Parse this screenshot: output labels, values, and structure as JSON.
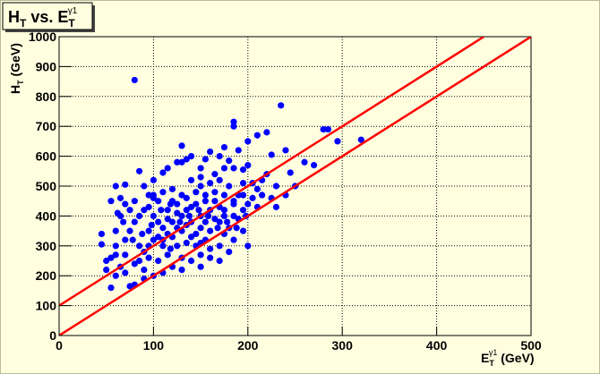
{
  "chart_data": {
    "type": "scatter",
    "title": [
      "H",
      "T",
      " vs. E",
      "T",
      "γ1"
    ],
    "x_label": [
      "E",
      "T",
      "γ1",
      " (GeV)"
    ],
    "y_label": [
      "H",
      "T",
      " (GeV)"
    ],
    "color": "#0000ff",
    "grid": true,
    "xlim": [
      0,
      500
    ],
    "xticks": [
      0,
      100,
      200,
      300,
      400,
      500
    ],
    "ylim": [
      0,
      1000
    ],
    "yticks": [
      0,
      100,
      200,
      300,
      400,
      500,
      600,
      700,
      800,
      900,
      1000
    ],
    "lines": [
      {
        "color": "#ff0000",
        "x": [
          0,
          450
        ],
        "y": [
          100,
          1000
        ]
      },
      {
        "color": "#ff0000",
        "x": [
          0,
          500
        ],
        "y": [
          0,
          1000
        ]
      }
    ],
    "x": [
      80,
      235,
      185,
      185,
      280,
      285,
      320,
      295,
      260,
      270,
      220,
      210,
      240,
      225,
      200,
      130,
      175,
      85,
      45,
      45,
      50,
      75,
      80,
      55,
      60,
      65,
      70,
      55,
      60,
      70,
      90,
      95,
      100,
      110,
      115,
      120,
      125,
      135,
      140,
      150,
      155,
      160,
      165,
      170,
      180,
      185,
      190,
      195,
      200,
      205,
      210,
      215,
      220,
      230,
      245,
      250,
      190,
      185,
      180,
      175,
      170,
      165,
      160,
      155,
      150,
      145,
      140,
      135,
      130,
      125,
      120,
      115,
      110,
      105,
      100,
      95,
      90,
      85,
      80,
      75,
      70,
      65,
      60,
      55,
      50,
      85,
      90,
      95,
      100,
      105,
      110,
      115,
      120,
      125,
      130,
      135,
      140,
      145,
      150,
      155,
      160,
      165,
      170,
      175,
      180,
      185,
      190,
      195,
      200,
      205,
      210,
      215,
      225,
      180,
      170,
      160,
      150,
      140,
      130,
      120,
      110,
      100,
      90,
      105,
      115,
      125,
      135,
      145,
      155,
      175,
      185,
      195,
      200,
      75,
      80,
      70,
      65,
      100,
      110,
      120,
      130,
      140,
      150,
      160,
      170,
      100,
      95,
      85,
      105,
      115,
      125,
      135,
      145,
      155,
      165,
      175,
      185,
      195,
      150,
      140,
      60,
      62,
      68,
      78,
      88,
      98,
      108,
      118,
      128,
      138,
      148,
      158,
      168,
      178,
      188,
      198,
      230,
      240,
      130,
      150,
      175,
      195,
      110,
      118,
      160,
      170,
      150,
      130,
      90,
      80,
      70,
      95,
      60
    ],
    "values": [
      855,
      770,
      715,
      700,
      690,
      690,
      655,
      650,
      580,
      570,
      680,
      670,
      620,
      605,
      650,
      635,
      630,
      550,
      340,
      305,
      250,
      165,
      170,
      160,
      200,
      230,
      270,
      450,
      500,
      505,
      500,
      470,
      520,
      545,
      560,
      490,
      580,
      590,
      600,
      560,
      590,
      615,
      540,
      600,
      585,
      560,
      620,
      555,
      570,
      510,
      490,
      520,
      540,
      500,
      545,
      500,
      470,
      450,
      500,
      470,
      430,
      480,
      420,
      450,
      400,
      480,
      430,
      460,
      400,
      440,
      380,
      420,
      360,
      450,
      400,
      350,
      420,
      300,
      380,
      350,
      320,
      400,
      300,
      260,
      220,
      250,
      280,
      300,
      320,
      330,
      300,
      340,
      330,
      360,
      350,
      370,
      380,
      340,
      360,
      380,
      350,
      390,
      380,
      400,
      360,
      400,
      390,
      420,
      440,
      460,
      430,
      470,
      460,
      280,
      300,
      290,
      270,
      250,
      260,
      230,
      210,
      200,
      220,
      250,
      270,
      300,
      310,
      300,
      320,
      340,
      320,
      350,
      300,
      420,
      450,
      440,
      460,
      460,
      480,
      450,
      470,
      520,
      500,
      510,
      520,
      470,
      430,
      400,
      380,
      390,
      410,
      420,
      440,
      470,
      450,
      420,
      440,
      470,
      310,
      330,
      350,
      410,
      380,
      320,
      340,
      370,
      420,
      440,
      380,
      400,
      420,
      400,
      360,
      380,
      360,
      400,
      430,
      470,
      580,
      530,
      560,
      510,
      320,
      290,
      260,
      250,
      230,
      220,
      190,
      240,
      210,
      260,
      270
    ]
  }
}
